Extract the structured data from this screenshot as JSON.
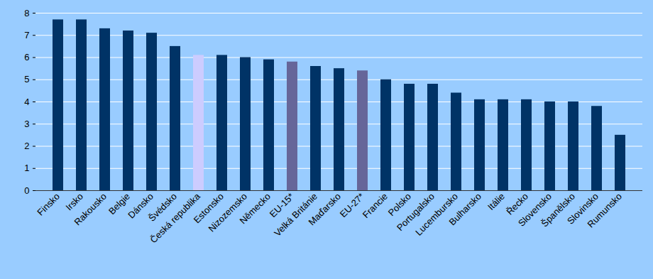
{
  "chart_data": {
    "type": "bar",
    "categories": [
      "Finsko",
      "Irsko",
      "Rakousko",
      "Belgie",
      "Dánsko",
      "Švédsko",
      "Česká republika",
      "Estonsko",
      "Nizozemsko",
      "Německo",
      "EU-15*",
      "Velká Británie",
      "Maďarsko",
      "EU-27*",
      "Francie",
      "Polsko",
      "Portugalsko",
      "Lucembursko",
      "Bulharsko",
      "Itálie",
      "Řecko",
      "Slovensko",
      "Španělsko",
      "Slovinsko",
      "Rumunsko"
    ],
    "values": [
      7.7,
      7.7,
      7.3,
      7.2,
      7.1,
      6.5,
      6.1,
      6.1,
      6.0,
      5.9,
      5.8,
      5.6,
      5.5,
      5.4,
      5.0,
      4.8,
      4.8,
      4.4,
      4.1,
      4.1,
      4.1,
      4.0,
      4.0,
      3.8,
      2.5
    ],
    "colors": [
      "#003366",
      "#003366",
      "#003366",
      "#003366",
      "#003366",
      "#003366",
      "#ccccff",
      "#003366",
      "#003366",
      "#003366",
      "#666699",
      "#003366",
      "#003366",
      "#666699",
      "#003366",
      "#003366",
      "#003366",
      "#003366",
      "#003366",
      "#003366",
      "#003366",
      "#003366",
      "#003366",
      "#003366",
      "#003366"
    ],
    "ylim": [
      0,
      8
    ],
    "yticks": [
      0,
      1,
      2,
      3,
      4,
      5,
      6,
      7,
      8
    ],
    "grid": true
  }
}
